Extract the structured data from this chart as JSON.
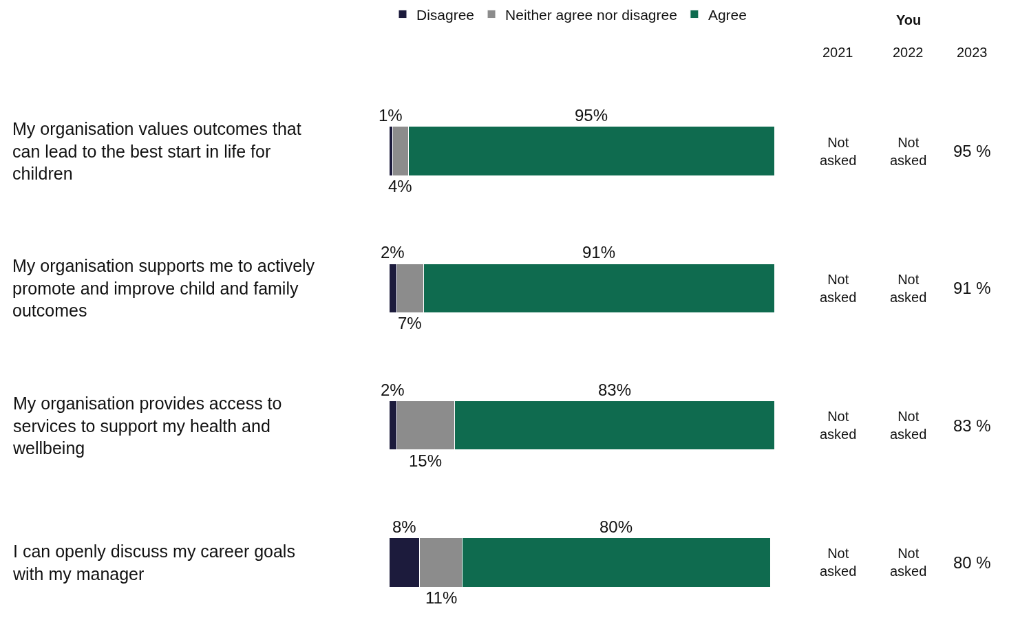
{
  "chart_data": {
    "type": "bar",
    "orientation": "horizontal",
    "stacked": true,
    "categories": [
      "My organisation values outcomes that can lead to the best start in life for children",
      "My organisation supports me to actively promote and improve child and family outcomes",
      "My organisation provides access to services to support my health and wellbeing",
      "I can openly discuss my career goals with my manager"
    ],
    "series": [
      {
        "name": "Disagree",
        "color": "#1c1b3c",
        "values": [
          1,
          2,
          2,
          8
        ],
        "value_labels": [
          "1%",
          "2%",
          "2%",
          "8%"
        ]
      },
      {
        "name": "Neither agree nor disagree",
        "color": "#8c8c8c",
        "values": [
          4,
          7,
          15,
          11
        ],
        "value_labels": [
          "4%",
          "7%",
          "15%",
          "11%"
        ]
      },
      {
        "name": "Agree",
        "color": "#0f6b4f",
        "values": [
          95,
          91,
          83,
          80
        ],
        "value_labels": [
          "95%",
          "91%",
          "83%",
          "80%"
        ]
      }
    ],
    "xlim": [
      0,
      100
    ],
    "tick_labels": "y",
    "grid": false,
    "legend": "top left",
    "annotations": [
      "You",
      "2021",
      "2022",
      "2023",
      "Not asked",
      "Not asked",
      "95 %",
      "Not asked",
      "Not asked",
      "91 %",
      "Not asked",
      "Not asked",
      "83 %",
      "Not asked",
      "Not asked",
      "80 %"
    ]
  }
}
